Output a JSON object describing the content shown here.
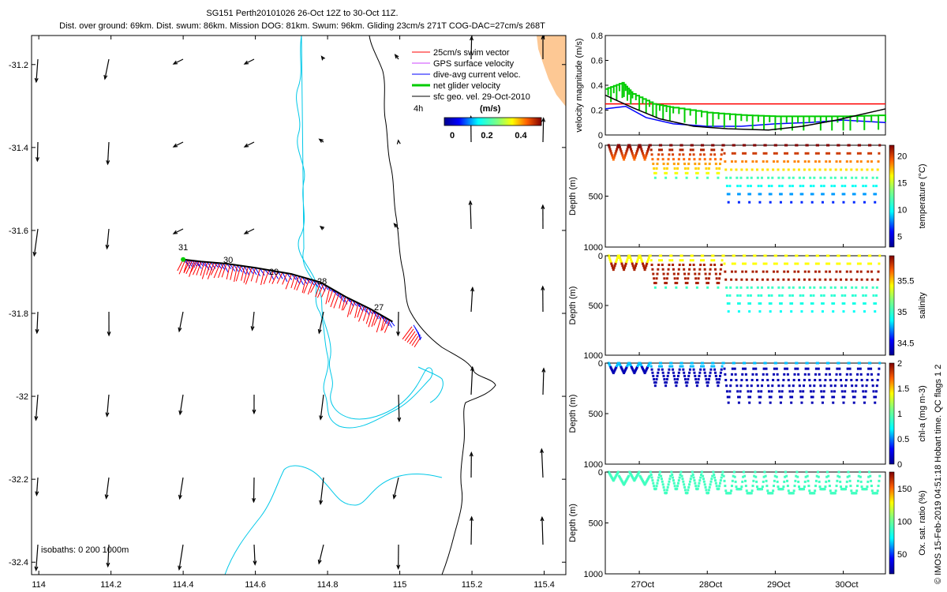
{
  "title": {
    "line1": "SG151 Perth20101026 26-Oct 12Z to 30-Oct 11Z.",
    "line2": "Dist. over ground: 69km. Dist. swum: 86km. Mission DOG: 81km. Swum: 96km. Gliding 23cm/s 271T COG-DAC=27cm/s 268T"
  },
  "map": {
    "xticks": [
      "114",
      "114.2",
      "114.4",
      "114.6",
      "114.8",
      "115",
      "115.2",
      "115.4"
    ],
    "yticks": [
      "-31.2",
      "-31.4",
      "-31.6",
      "-31.8",
      "-32",
      "-32.2",
      "-32.4"
    ],
    "legend": [
      "25cm/s swim vector",
      "GPS surface velocity",
      "dive-avg current veloc.",
      "net glider velocity",
      "sfc geo. vel. 29-Oct-2010"
    ],
    "legend_colors": [
      "#ff0000",
      "#cc44ff",
      "#0000ff",
      "#00cc00",
      "#000000"
    ],
    "time_step": "4h",
    "cbar_label": "(m/s)",
    "cbar_ticks": [
      "0",
      "0.2",
      "0.4"
    ],
    "isobaths": "isobaths: 0   200   1000m",
    "day_labels": [
      "31",
      "30",
      "29",
      "28",
      "27"
    ]
  },
  "panels": {
    "xticks": [
      "27Oct",
      "28Oct",
      "29Oct",
      "30Oct"
    ],
    "velocity": {
      "ylabel": "velocity magnitude (m/s)",
      "yticks": [
        "0",
        "0.2",
        "0.4",
        "0.6",
        "0.8"
      ]
    },
    "temperature": {
      "ylabel": "Depth (m)",
      "cbar_label": "temperature (°C)",
      "cbar_ticks": [
        "5",
        "10",
        "15",
        "20"
      ],
      "yticks": [
        "0",
        "500",
        "1000"
      ]
    },
    "salinity": {
      "ylabel": "Depth (m)",
      "cbar_label": "salinity",
      "cbar_ticks": [
        "34.5",
        "35",
        "35.5"
      ],
      "yticks": [
        "0",
        "500",
        "1000"
      ]
    },
    "chla": {
      "ylabel": "Depth (m)",
      "cbar_label": "chl-a (mg m-3)",
      "cbar_ticks": [
        "0",
        "0.5",
        "1",
        "1.5",
        "2"
      ],
      "yticks": [
        "0",
        "500",
        "1000"
      ]
    },
    "oxygen": {
      "ylabel": "Depth (m)",
      "cbar_label": "Ox. sat. ratio (%)",
      "cbar_ticks": [
        "50",
        "100",
        "150"
      ],
      "yticks": [
        "0",
        "500",
        "1000"
      ]
    }
  },
  "side_note": "© IMOS 15-Feb-2019 04:51:18 Hobart time. QC flags 1  2",
  "chart_data": [
    {
      "type": "scatter",
      "name": "glider track map",
      "xlim": [
        113.98,
        115.46
      ],
      "ylim": [
        -32.43,
        -31.13
      ],
      "xlabel": "",
      "ylabel": "",
      "track": [
        [
          114.4,
          -31.67
        ],
        [
          114.45,
          -31.675
        ],
        [
          114.52,
          -31.68
        ],
        [
          114.6,
          -31.69
        ],
        [
          114.7,
          -31.705
        ],
        [
          114.78,
          -31.725
        ],
        [
          114.85,
          -31.76
        ],
        [
          114.92,
          -31.79
        ],
        [
          114.98,
          -31.82
        ]
      ],
      "final_point": [
        115.06,
        -31.87
      ]
    },
    {
      "type": "line",
      "name": "velocity magnitude",
      "xlim": [
        26.5,
        30.62
      ],
      "ylim": [
        0,
        0.8
      ],
      "series": [
        {
          "name": "swim speed",
          "color": "#ff0000",
          "x": [
            26.5,
            30.62
          ],
          "y": [
            0.25,
            0.25
          ]
        },
        {
          "name": "dive-avg current",
          "color": "#0000ff",
          "x": [
            26.5,
            26.8,
            27.1,
            27.5,
            28.0,
            28.5,
            29.0,
            29.5,
            30.0,
            30.62
          ],
          "y": [
            0.21,
            0.23,
            0.14,
            0.09,
            0.07,
            0.07,
            0.09,
            0.1,
            0.12,
            0.1
          ]
        },
        {
          "name": "net glider",
          "color": "#00cc00",
          "x": [
            26.5,
            26.75,
            26.9,
            27.2,
            27.5,
            28.0,
            28.5,
            29.0,
            29.5,
            30.0,
            30.62
          ],
          "y": [
            0.37,
            0.42,
            0.33,
            0.25,
            0.22,
            0.18,
            0.16,
            0.15,
            0.15,
            0.15,
            0.16
          ]
        },
        {
          "name": "surface geostrophic",
          "color": "#000000",
          "x": [
            26.5,
            26.9,
            27.3,
            27.8,
            28.3,
            28.9,
            29.4,
            29.9,
            30.62
          ],
          "y": [
            0.32,
            0.22,
            0.13,
            0.07,
            0.05,
            0.04,
            0.07,
            0.12,
            0.21
          ]
        }
      ]
    },
    {
      "type": "scatter",
      "name": "temperature section",
      "xlim": [
        26.5,
        30.62
      ],
      "ylim": [
        1000,
        0
      ],
      "clim": [
        3,
        22
      ],
      "dive_days": [
        26.55,
        30.55
      ],
      "max_depth_schedule": [
        [
          26.5,
          140
        ],
        [
          27.2,
          350
        ],
        [
          28.1,
          600
        ],
        [
          30.62,
          600
        ]
      ]
    },
    {
      "type": "scatter",
      "name": "salinity section",
      "xlim": [
        26.5,
        30.62
      ],
      "ylim": [
        1000,
        0
      ],
      "clim": [
        34.3,
        35.9
      ]
    },
    {
      "type": "scatter",
      "name": "chl-a section",
      "xlim": [
        26.5,
        30.62
      ],
      "ylim": [
        1000,
        0
      ],
      "clim": [
        0,
        2
      ]
    },
    {
      "type": "scatter",
      "name": "oxygen saturation section",
      "xlim": [
        26.5,
        30.62
      ],
      "ylim": [
        1000,
        0
      ],
      "clim": [
        20,
        175
      ]
    }
  ]
}
